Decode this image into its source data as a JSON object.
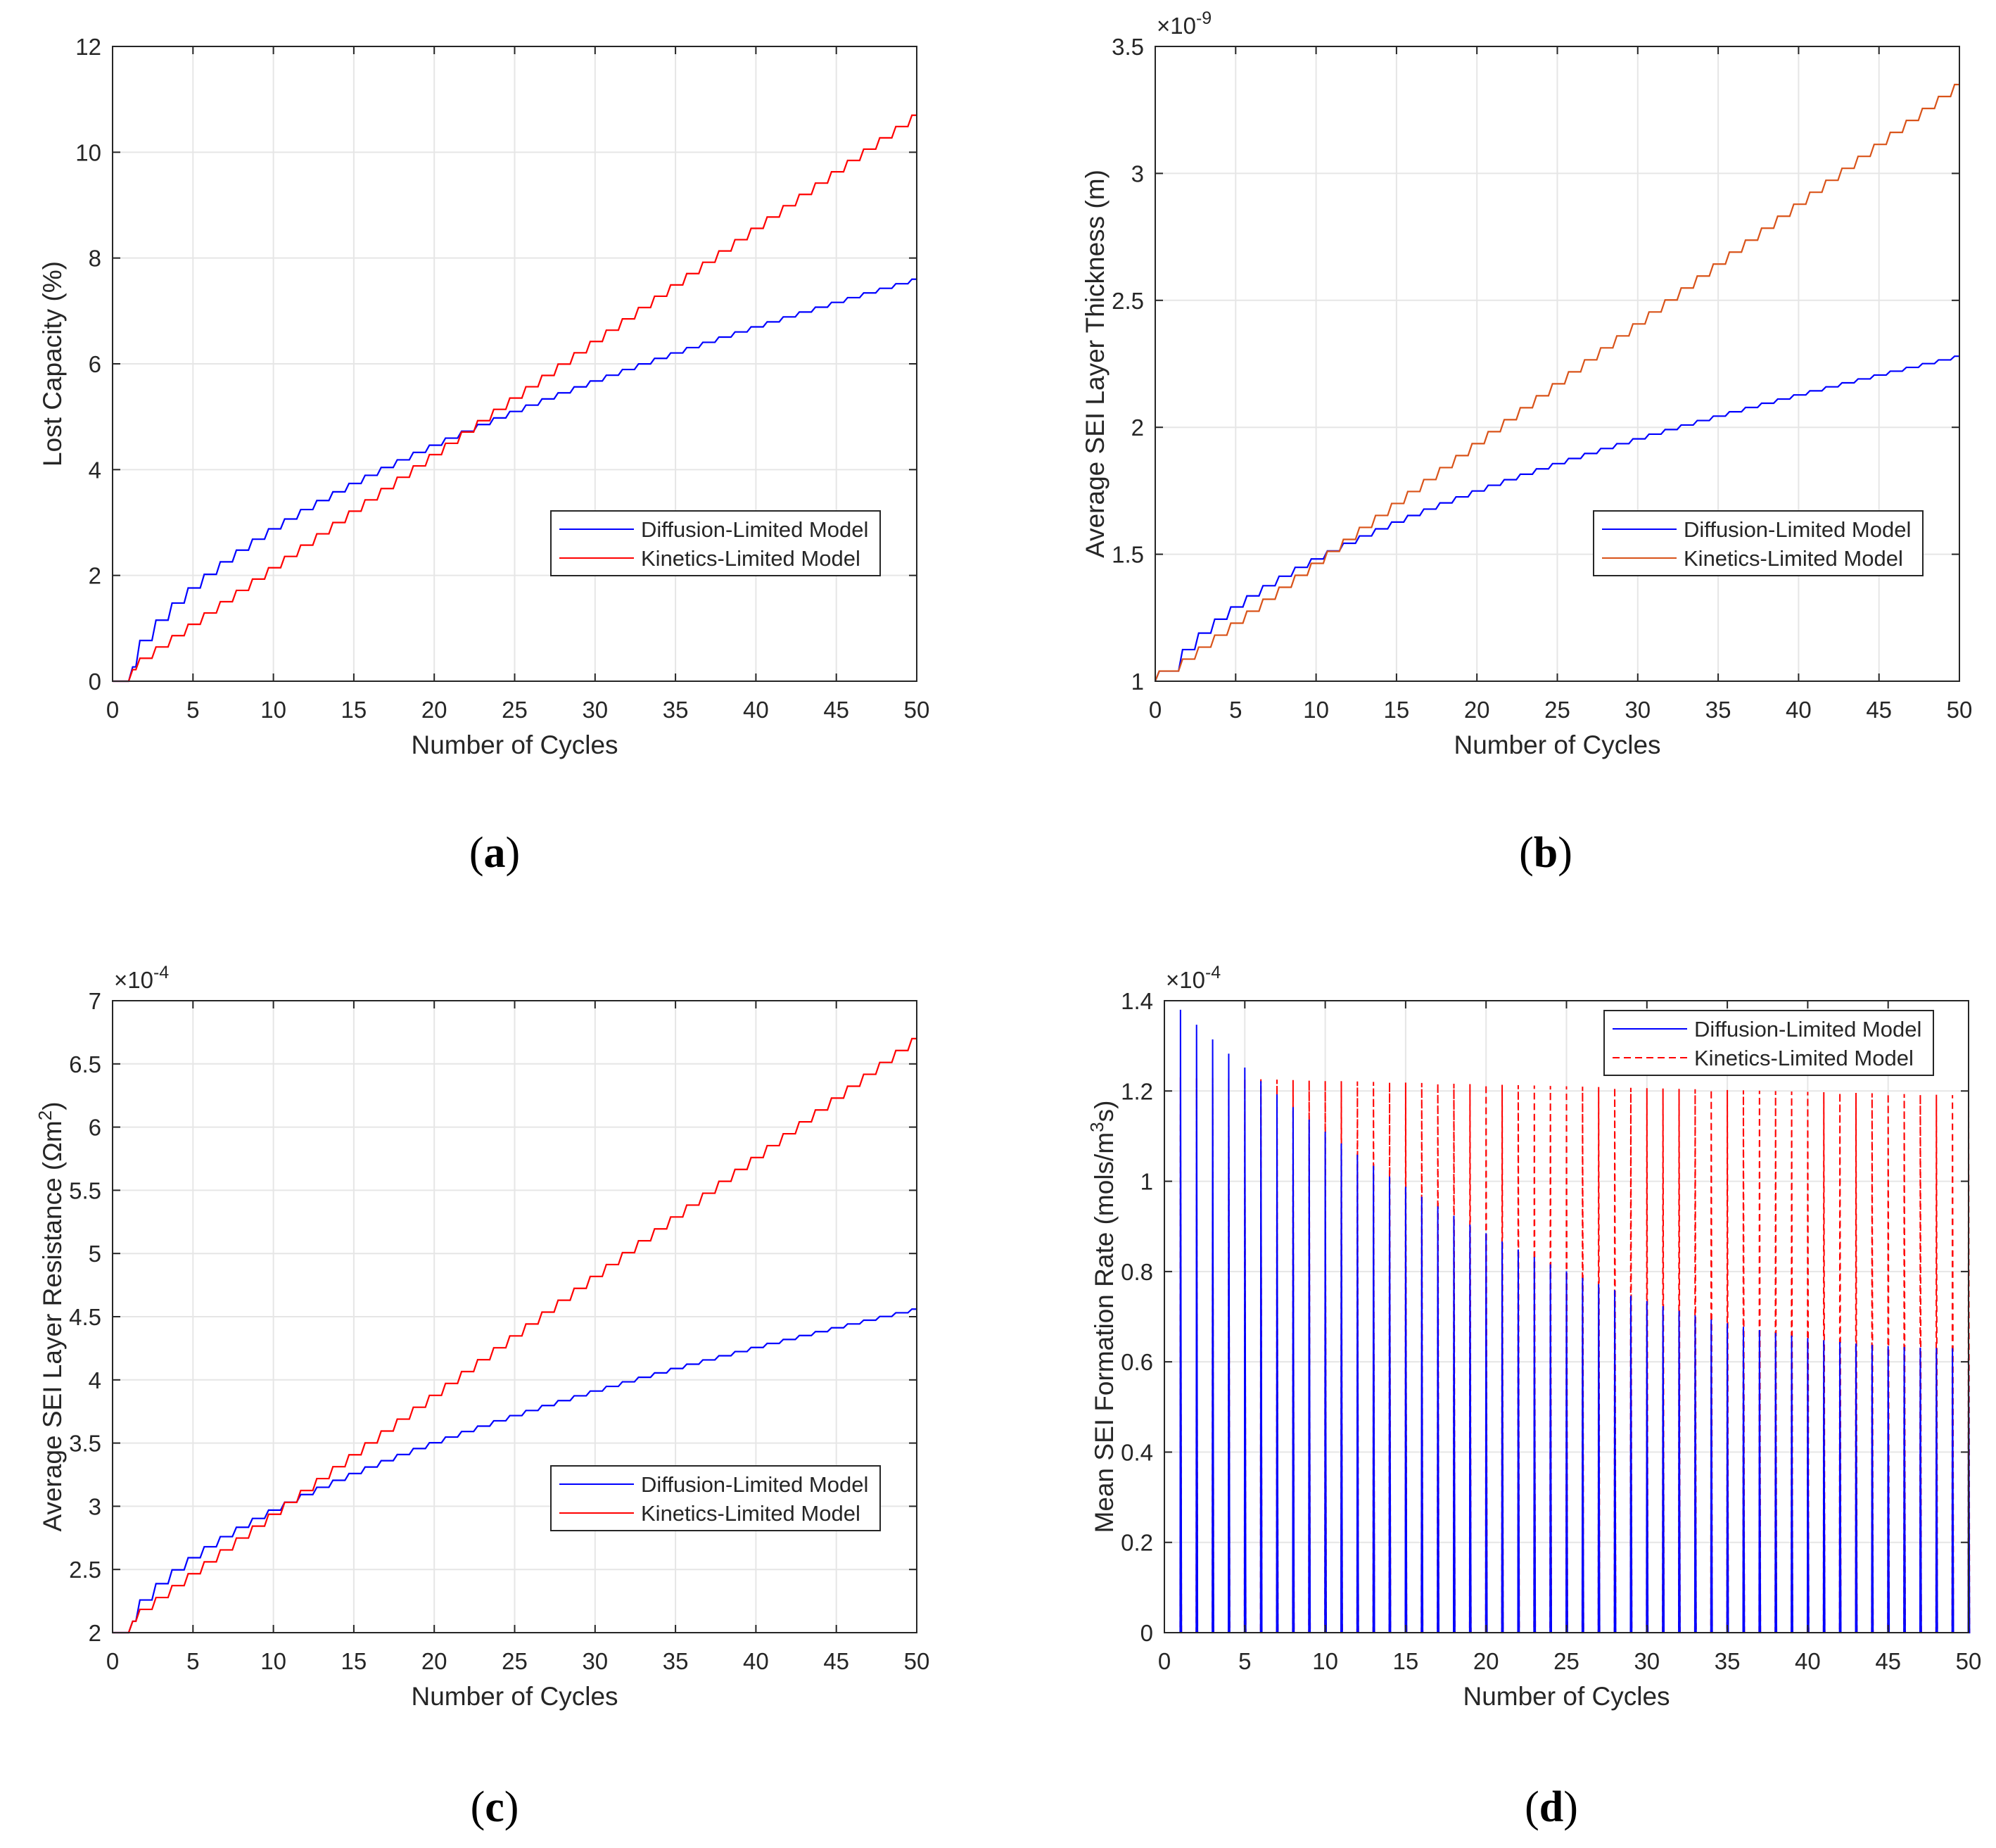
{
  "figure": {
    "captions": [
      "(a)",
      "(b)",
      "(c)",
      "(d)"
    ],
    "caption_letters": [
      "a",
      "b",
      "c",
      "d"
    ]
  },
  "colors": {
    "blue": "#0000ff",
    "red": "#ff0000",
    "orange": "#d95319",
    "grid": "#e6e6e6",
    "axis": "#262626"
  },
  "chart_data": [
    {
      "id": "a",
      "type": "line",
      "caption": "(a)",
      "xlabel": "Number of Cycles",
      "ylabel": "Lost Capacity (%)",
      "xlim": [
        0,
        50
      ],
      "ylim": [
        0,
        12
      ],
      "xticks": [
        0,
        5,
        10,
        15,
        20,
        25,
        30,
        35,
        40,
        45,
        50
      ],
      "yticks": [
        0,
        2,
        4,
        6,
        8,
        10,
        12
      ],
      "ytick_labels": [
        "0",
        "2",
        "4",
        "6",
        "8",
        "10",
        "12"
      ],
      "exponent": null,
      "grid": true,
      "legend": "lower-right",
      "series": [
        {
          "name": "Diffusion-Limited Model",
          "color": "#0000ff",
          "dash": "solid",
          "start_x": 1,
          "start_y": 0,
          "end_y": 7.6,
          "first_step": 0.27,
          "shape": "concave"
        },
        {
          "name": "Kinetics-Limited Model",
          "color": "#ff0000",
          "dash": "solid",
          "start_x": 1,
          "start_y": 0,
          "end_y": 10.7,
          "first_step": 0.22,
          "shape": "linear"
        }
      ]
    },
    {
      "id": "b",
      "type": "line",
      "caption": "(b)",
      "xlabel": "Number of Cycles",
      "ylabel": "Average SEI Layer Thickness (m)",
      "xlim": [
        0,
        50
      ],
      "ylim": [
        1,
        3.5
      ],
      "xticks": [
        0,
        5,
        10,
        15,
        20,
        25,
        30,
        35,
        40,
        45,
        50
      ],
      "yticks": [
        1,
        1.5,
        2,
        2.5,
        3,
        3.5
      ],
      "ytick_labels": [
        "1",
        "1.5",
        "2",
        "2.5",
        "3",
        "3.5"
      ],
      "exponent": "-9",
      "grid": true,
      "legend": "lower-right",
      "series": [
        {
          "name": "Diffusion-Limited Model",
          "color": "#0000ff",
          "dash": "solid",
          "start_x": 0,
          "start_y": 1,
          "end_y": 2.28,
          "first_step": 0.04,
          "shape": "concave"
        },
        {
          "name": "Kinetics-Limited Model",
          "color": "#d95319",
          "dash": "solid",
          "start_x": 0,
          "start_y": 1,
          "end_y": 3.35,
          "first_step": 0.04,
          "shape": "linear"
        }
      ]
    },
    {
      "id": "c",
      "type": "line",
      "caption": "(c)",
      "xlabel": "Number of Cycles",
      "ylabel": "Average SEI Layer Resistance (Ωm²)",
      "ylabel_main": "Average SEI Layer Resistance (Ωm",
      "ylabel_sup": "2",
      "ylabel_end": ")",
      "xlim": [
        0,
        50
      ],
      "ylim": [
        2,
        7
      ],
      "xticks": [
        0,
        5,
        10,
        15,
        20,
        25,
        30,
        35,
        40,
        45,
        50
      ],
      "yticks": [
        2,
        2.5,
        3,
        3.5,
        4,
        4.5,
        5,
        5.5,
        6,
        6.5,
        7
      ],
      "ytick_labels": [
        "2",
        "2.5",
        "3",
        "3.5",
        "4",
        "4.5",
        "5",
        "5.5",
        "6",
        "6.5",
        "7"
      ],
      "exponent": "-4",
      "grid": true,
      "legend": "lower-right",
      "series": [
        {
          "name": "Diffusion-Limited Model",
          "color": "#0000ff",
          "dash": "solid",
          "start_x": 1,
          "start_y": 2,
          "end_y": 4.56,
          "first_step": 0.09,
          "shape": "concave"
        },
        {
          "name": "Kinetics-Limited Model",
          "color": "#ff0000",
          "dash": "solid",
          "start_x": 1,
          "start_y": 2,
          "end_y": 6.7,
          "first_step": 0.09,
          "shape": "linear"
        }
      ]
    },
    {
      "id": "d",
      "type": "line",
      "caption": "(d)",
      "xlabel": "Number of Cycles",
      "ylabel": "Mean SEI Formation Rate (mols/m³s)",
      "ylabel_main": "Mean SEI Formation Rate (mols/m",
      "ylabel_sup": "3",
      "ylabel_end": "s)",
      "xlim": [
        0,
        50
      ],
      "ylim": [
        0,
        1.4
      ],
      "xticks": [
        0,
        5,
        10,
        15,
        20,
        25,
        30,
        35,
        40,
        45,
        50
      ],
      "yticks": [
        0,
        0.2,
        0.4,
        0.6,
        0.8,
        1,
        1.2,
        1.4
      ],
      "ytick_labels": [
        "0",
        "0.2",
        "0.4",
        "0.6",
        "0.8",
        "1",
        "1.2",
        "1.4"
      ],
      "exponent": "-4",
      "grid": true,
      "legend": "top-right",
      "series": [
        {
          "name": "Diffusion-Limited Model",
          "color": "#0000ff",
          "dash": "solid",
          "spike_peak_first": 1.38,
          "spike_peak_last": 0.63
        },
        {
          "name": "Kinetics-Limited Model",
          "color": "#ff0000",
          "dash": "dashed",
          "spike_peak_first": 1.23,
          "spike_peak_last": 1.19
        }
      ]
    }
  ]
}
